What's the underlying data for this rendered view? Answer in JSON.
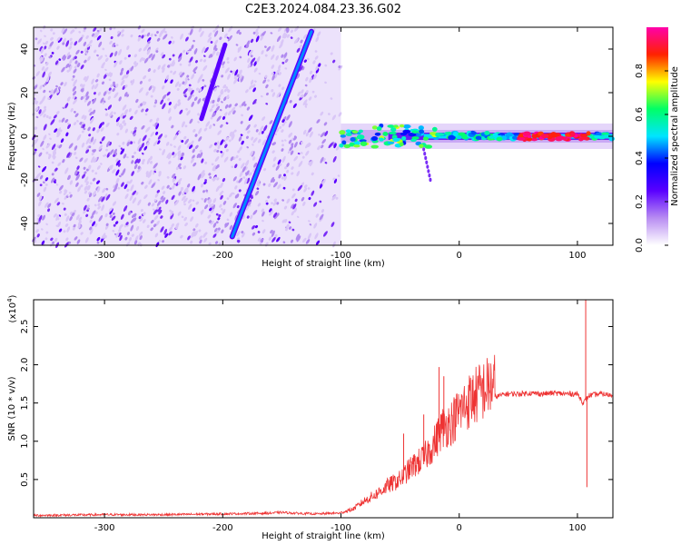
{
  "page": {
    "title": "C2E3.2024.084.23.36.G02"
  },
  "chart_data": [
    {
      "type": "heatmap",
      "title": "C2E3.2024.084.23.36.G02",
      "xlabel": "Height of straight line (km)",
      "ylabel": "Frequency (Hz)",
      "xlim": [
        -360,
        130
      ],
      "ylim": [
        -50,
        50
      ],
      "x_ticks": [
        -300,
        -200,
        -100,
        0,
        100
      ],
      "y_ticks": [
        -40,
        -20,
        0,
        20,
        40
      ],
      "colorbar": {
        "label": "Normalized spectral amplitude",
        "range": [
          0.0,
          1.0
        ],
        "ticks": [
          0.0,
          0.2,
          0.4,
          0.6,
          0.8
        ],
        "colormap": [
          "#ffffff",
          "#b88cf2",
          "#5a00ff",
          "#0000ff",
          "#00e5ff",
          "#00ff66",
          "#ffff00",
          "#ff2200",
          "#ff00aa"
        ]
      },
      "features": {
        "main_streak": {
          "from": [
            -192,
            -46
          ],
          "to": [
            -125,
            48
          ],
          "amplitude": 0.45
        },
        "faint_streak": {
          "from": [
            -218,
            8
          ],
          "to": [
            -198,
            42
          ],
          "amplitude": 0.25
        },
        "horizontal_echo_band": {
          "x_range": [
            -100,
            130
          ],
          "frequency": 0,
          "peak_amplitude": 0.95,
          "strong_range": [
            50,
            110
          ]
        },
        "noise_region": {
          "x_range": [
            -360,
            -100
          ],
          "amplitude": 0.1
        }
      }
    },
    {
      "type": "line",
      "xlabel": "Height of straight line (km)",
      "ylabel": "SNR (10 * v/v)",
      "y_multiplier": "(x10",
      "y_multiplier_exp": "4",
      "y_multiplier_close": ")",
      "xlim": [
        -360,
        130
      ],
      "ylim": [
        0,
        2.85
      ],
      "x_ticks": [
        -300,
        -200,
        -100,
        0,
        100
      ],
      "y_ticks": [
        0.5,
        1.0,
        1.5,
        2.0,
        2.5
      ],
      "color": "#ee3333",
      "series": [
        {
          "x": [
            -360,
            -300,
            -250,
            -200,
            -160,
            -150,
            -140,
            -120,
            -105,
            -100,
            -90,
            -80,
            -70,
            -60,
            -50,
            -40,
            -30,
            -25,
            -20,
            -15,
            -10,
            -5,
            0,
            10,
            20,
            30,
            40,
            50,
            60,
            70,
            80,
            90,
            100,
            105,
            110,
            120,
            130
          ],
          "y": [
            0.03,
            0.04,
            0.04,
            0.05,
            0.06,
            0.07,
            0.06,
            0.05,
            0.06,
            0.06,
            0.1,
            0.2,
            0.28,
            0.38,
            0.45,
            0.6,
            0.7,
            0.8,
            0.9,
            1.05,
            1.1,
            1.15,
            1.25,
            1.4,
            1.5,
            1.58,
            1.62,
            1.62,
            1.63,
            1.62,
            1.63,
            1.62,
            1.62,
            1.5,
            1.6,
            1.62,
            1.6
          ],
          "spikes": [
            {
              "x": -17,
              "y": 1.97
            },
            {
              "x": -13,
              "y": 1.85
            },
            {
              "x": -30,
              "y": 1.35
            },
            {
              "x": -47,
              "y": 1.1
            },
            {
              "x": 107,
              "y": 2.85
            },
            {
              "x": 108,
              "y": 0.4
            }
          ]
        }
      ]
    }
  ]
}
